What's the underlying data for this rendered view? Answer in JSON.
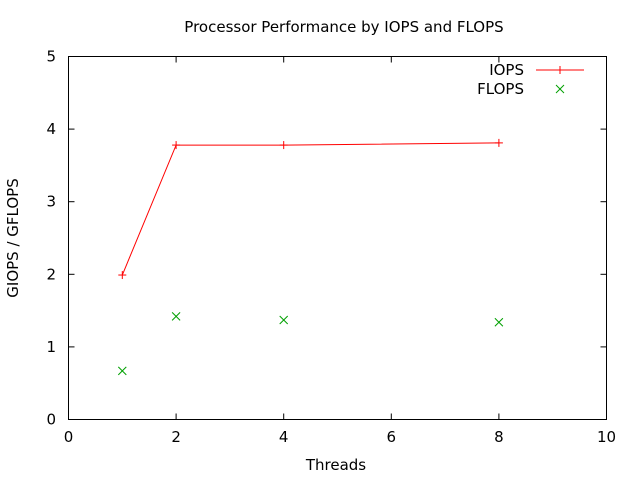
{
  "chart_data": {
    "type": "line",
    "title": "Processor Performance by IOPS and FLOPS",
    "xlabel": "Threads",
    "ylabel": "GIOPS / GFLOPS",
    "xlim": [
      0,
      10
    ],
    "ylim": [
      0,
      5
    ],
    "xticks": [
      "0",
      "2",
      "4",
      "6",
      "8",
      "10"
    ],
    "yticks": [
      "0",
      "1",
      "2",
      "3",
      "4",
      "5"
    ],
    "grid": false,
    "legend_position": "top-right",
    "series": [
      {
        "name": "IOPS",
        "style": "linespoints",
        "marker": "plus",
        "color": "#ff0000",
        "x": [
          1,
          2,
          4,
          8
        ],
        "y": [
          1.99,
          3.78,
          3.78,
          3.81
        ]
      },
      {
        "name": "FLOPS",
        "style": "points",
        "marker": "cross",
        "color": "#00a000",
        "x": [
          1,
          2,
          4,
          8
        ],
        "y": [
          0.67,
          1.42,
          1.37,
          1.34
        ]
      }
    ]
  }
}
